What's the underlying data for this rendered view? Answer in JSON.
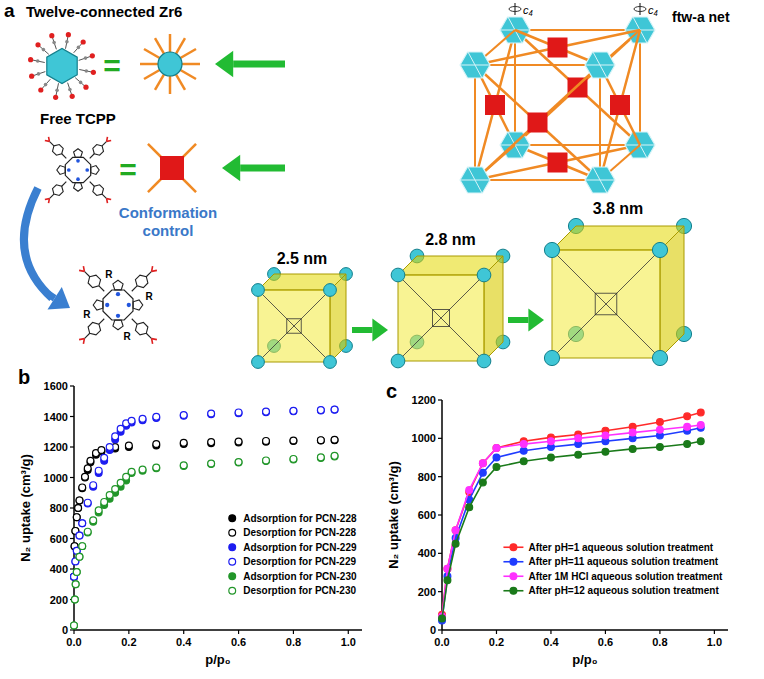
{
  "panel_a": {
    "label": "a",
    "cluster_label": "Twelve-connected Zr6",
    "linker_label": "Free TCPP",
    "net_label": "ftw-a net",
    "rotation_axis": "c₄",
    "equals": "=",
    "arrow_label": "Conformation control",
    "substituent": "R",
    "cages": [
      "2.5 nm",
      "2.8 nm",
      "3.8 nm"
    ]
  },
  "chart_data": [
    {
      "type": "scatter",
      "panel": "b",
      "x_label": "p/p₀",
      "y_label": "N₂ uptake (cm³/g)",
      "xlim": [
        0,
        1.05
      ],
      "ylim": [
        0,
        1600
      ],
      "xticks": [
        {
          "value": 0,
          "label": "0.0"
        },
        {
          "value": 0.2,
          "label": "0.2"
        },
        {
          "value": 0.4,
          "label": "0.4"
        },
        {
          "value": 0.6,
          "label": "0.6"
        },
        {
          "value": 0.8,
          "label": "0.8"
        },
        {
          "value": 1,
          "label": "1.0"
        }
      ],
      "yticks": [
        0,
        200,
        400,
        600,
        800,
        1000,
        1200,
        1400,
        1600
      ],
      "legend": "lower-right",
      "series": [
        {
          "name": "Adsorption for PCN-228",
          "color": "#000000",
          "marker": "circle",
          "x": [
            0,
            0.002,
            0.005,
            0.01,
            0.015,
            0.02,
            0.03,
            0.04,
            0.05,
            0.06,
            0.08,
            0.1,
            0.15,
            0.2,
            0.3,
            0.4,
            0.5,
            0.6,
            0.7,
            0.8,
            0.9,
            0.95
          ],
          "values": [
            350,
            550,
            650,
            740,
            800,
            850,
            930,
            1000,
            1050,
            1100,
            1150,
            1170,
            1190,
            1200,
            1210,
            1220,
            1225,
            1230,
            1235,
            1240,
            1243,
            1245
          ]
        },
        {
          "name": "Desorption for PCN-228",
          "color": "#000000",
          "marker": "open-circle",
          "x": [
            0,
            0.002,
            0.005,
            0.01,
            0.015,
            0.02,
            0.03,
            0.04,
            0.05,
            0.06,
            0.08,
            0.1,
            0.15,
            0.2,
            0.3,
            0.4,
            0.5,
            0.6,
            0.7,
            0.8,
            0.9,
            0.95
          ],
          "values": [
            350,
            550,
            650,
            740,
            800,
            850,
            935,
            1005,
            1060,
            1110,
            1160,
            1180,
            1200,
            1210,
            1220,
            1228,
            1232,
            1236,
            1240,
            1243,
            1245,
            1248
          ]
        },
        {
          "name": "Adsorption for PCN-229",
          "color": "#1c1cf0",
          "marker": "circle",
          "x": [
            0,
            0.005,
            0.01,
            0.02,
            0.03,
            0.05,
            0.07,
            0.09,
            0.11,
            0.13,
            0.15,
            0.17,
            0.19,
            0.21,
            0.25,
            0.3,
            0.4,
            0.5,
            0.6,
            0.7,
            0.8,
            0.9,
            0.95
          ],
          "values": [
            350,
            450,
            520,
            620,
            700,
            830,
            940,
            1030,
            1110,
            1180,
            1250,
            1300,
            1340,
            1360,
            1375,
            1390,
            1405,
            1415,
            1422,
            1428,
            1434,
            1440,
            1445
          ]
        },
        {
          "name": "Desorption for PCN-229",
          "color": "#1c1cf0",
          "marker": "open-circle",
          "x": [
            0,
            0.005,
            0.01,
            0.02,
            0.03,
            0.05,
            0.07,
            0.09,
            0.11,
            0.13,
            0.15,
            0.17,
            0.19,
            0.21,
            0.25,
            0.3,
            0.4,
            0.5,
            0.6,
            0.7,
            0.8,
            0.9,
            0.95
          ],
          "values": [
            350,
            450,
            520,
            620,
            700,
            835,
            950,
            1045,
            1130,
            1200,
            1270,
            1320,
            1355,
            1372,
            1385,
            1398,
            1410,
            1420,
            1427,
            1432,
            1437,
            1442,
            1446
          ]
        },
        {
          "name": "Adsorption for PCN-230",
          "color": "#22962a",
          "marker": "circle",
          "x": [
            0,
            0.003,
            0.006,
            0.01,
            0.02,
            0.03,
            0.05,
            0.07,
            0.09,
            0.11,
            0.13,
            0.15,
            0.17,
            0.19,
            0.21,
            0.25,
            0.3,
            0.4,
            0.5,
            0.6,
            0.7,
            0.8,
            0.9,
            0.95
          ],
          "values": [
            30,
            200,
            300,
            380,
            480,
            550,
            640,
            710,
            770,
            820,
            860,
            900,
            940,
            980,
            1030,
            1045,
            1060,
            1075,
            1088,
            1098,
            1108,
            1118,
            1128,
            1138
          ]
        },
        {
          "name": "Desorption for PCN-230",
          "color": "#22962a",
          "marker": "open-circle",
          "x": [
            0,
            0.003,
            0.006,
            0.01,
            0.02,
            0.03,
            0.05,
            0.07,
            0.09,
            0.11,
            0.13,
            0.15,
            0.17,
            0.19,
            0.21,
            0.25,
            0.3,
            0.4,
            0.5,
            0.6,
            0.7,
            0.8,
            0.9,
            0.95
          ],
          "values": [
            30,
            200,
            300,
            380,
            480,
            550,
            645,
            720,
            785,
            840,
            885,
            925,
            965,
            1005,
            1038,
            1052,
            1066,
            1080,
            1092,
            1102,
            1112,
            1122,
            1132,
            1142
          ]
        }
      ]
    },
    {
      "type": "line",
      "panel": "c",
      "x_label": "p/p₀",
      "y_label": "N₂ uptake (cm³/g)",
      "xlim": [
        0,
        1.05
      ],
      "ylim": [
        0,
        1200
      ],
      "xticks": [
        {
          "value": 0,
          "label": "0.0"
        },
        {
          "value": 0.2,
          "label": "0.2"
        },
        {
          "value": 0.4,
          "label": "0.4"
        },
        {
          "value": 0.6,
          "label": "0.6"
        },
        {
          "value": 0.8,
          "label": "0.8"
        },
        {
          "value": 1,
          "label": "1.0"
        }
      ],
      "yticks": [
        0,
        200,
        400,
        600,
        800,
        1000,
        1200
      ],
      "legend": "lower-right",
      "series": [
        {
          "name": "After pH=1 aqueous solution treatment",
          "color": "#ff2a2a",
          "marker": "circle",
          "line_style": "solid",
          "x": [
            0,
            0.02,
            0.05,
            0.1,
            0.15,
            0.2,
            0.3,
            0.4,
            0.5,
            0.6,
            0.7,
            0.8,
            0.9,
            0.95
          ],
          "values": [
            80,
            320,
            520,
            720,
            870,
            950,
            985,
            1005,
            1020,
            1040,
            1060,
            1085,
            1115,
            1135
          ]
        },
        {
          "name": "After pH=11 aqueous solution treatment",
          "color": "#1f3cff",
          "marker": "circle",
          "line_style": "solid",
          "x": [
            0,
            0.02,
            0.05,
            0.1,
            0.15,
            0.2,
            0.3,
            0.4,
            0.5,
            0.6,
            0.7,
            0.8,
            0.9,
            0.95
          ],
          "values": [
            50,
            280,
            480,
            680,
            820,
            900,
            935,
            955,
            970,
            985,
            1000,
            1015,
            1040,
            1055
          ]
        },
        {
          "name": "After 1M HCl aqueous solution treatment",
          "color": "#ff30ff",
          "marker": "circle",
          "line_style": "solid",
          "x": [
            0,
            0.02,
            0.05,
            0.1,
            0.15,
            0.2,
            0.3,
            0.4,
            0.5,
            0.6,
            0.7,
            0.8,
            0.9,
            0.95
          ],
          "values": [
            70,
            320,
            520,
            730,
            870,
            950,
            970,
            985,
            1000,
            1015,
            1030,
            1045,
            1060,
            1070
          ]
        },
        {
          "name": "After pH=12 aqueous solution treatment",
          "color": "#1a7a1a",
          "marker": "circle",
          "line_style": "solid",
          "x": [
            0,
            0.02,
            0.05,
            0.1,
            0.15,
            0.2,
            0.3,
            0.4,
            0.5,
            0.6,
            0.7,
            0.8,
            0.9,
            0.95
          ],
          "values": [
            60,
            260,
            450,
            640,
            770,
            850,
            880,
            900,
            915,
            930,
            945,
            955,
            970,
            985
          ]
        }
      ]
    }
  ]
}
